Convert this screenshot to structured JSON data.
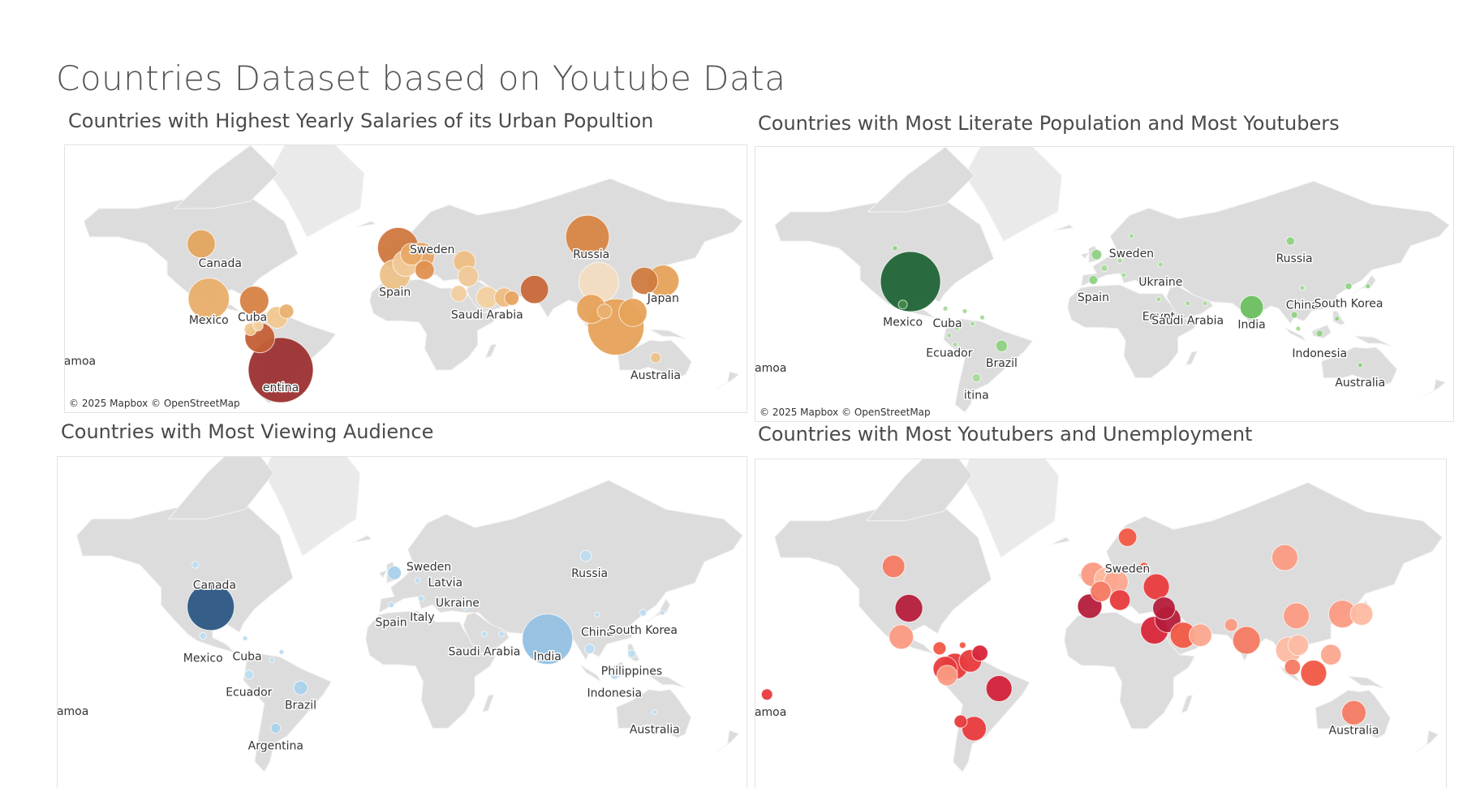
{
  "dashboard_title": "Countries Dataset based on Youtube Data",
  "attribution": "© 2025 Mapbox © OpenStreetMap",
  "maps": [
    {
      "id": "salaries",
      "title": "Countries with Highest Yearly Salaries of its Urban Popultion",
      "labels": [
        {
          "text": "Canada",
          "lon": -96,
          "lat": 56
        },
        {
          "text": "Mexico",
          "lon": -102,
          "lat": 20
        },
        {
          "text": "Cuba",
          "lon": -79,
          "lat": 22
        },
        {
          "text": "Sweden",
          "lon": 16,
          "lat": 62
        },
        {
          "text": "Russia",
          "lon": 100,
          "lat": 60
        },
        {
          "text": "Spain",
          "lon": -3.7,
          "lat": 40
        },
        {
          "text": "Saudi Arabia",
          "lon": 45,
          "lat": 24
        },
        {
          "text": "Japan",
          "lon": 138,
          "lat": 36
        },
        {
          "text": "Australia",
          "lon": 134,
          "lat": -25
        },
        {
          "text": "Samoa",
          "lon": -172,
          "lat": -13.8
        },
        {
          "text": "entina",
          "lon": -64,
          "lat": -34
        }
      ],
      "points": [
        {
          "lon": -106,
          "lat": 57,
          "v": 15000,
          "c": "#e4a45e"
        },
        {
          "lon": -102,
          "lat": 23,
          "v": 32000,
          "c": "#e8ad6a"
        },
        {
          "lon": -78,
          "lat": 21.5,
          "v": 16000,
          "c": "#d68143"
        },
        {
          "lon": -61,
          "lat": 13,
          "v": 4000,
          "c": "#e9b070"
        },
        {
          "lon": -66,
          "lat": 8,
          "v": 9000,
          "c": "#f0c78f"
        },
        {
          "lon": -76,
          "lat": 1,
          "v": 2000,
          "c": "#f3d3a3"
        },
        {
          "lon": -64,
          "lat": -34,
          "v": 80000,
          "c": "#9c3030"
        },
        {
          "lon": -80,
          "lat": -2,
          "v": 3000,
          "c": "#f0c78f"
        },
        {
          "lon": -75,
          "lat": -9,
          "v": 17000,
          "c": "#c45f35"
        },
        {
          "lon": -2,
          "lat": 55,
          "v": 32000,
          "c": "#d0773f"
        },
        {
          "lon": 5,
          "lat": 52,
          "v": 9000,
          "c": "#e8a865"
        },
        {
          "lon": 10,
          "lat": 51,
          "v": 14000,
          "c": "#e6a463"
        },
        {
          "lon": 2,
          "lat": 47,
          "v": 13000,
          "c": "#f0c896"
        },
        {
          "lon": -3.7,
          "lat": 40,
          "v": 18000,
          "c": "#ecc088"
        },
        {
          "lon": 12,
          "lat": 43,
          "v": 7000,
          "c": "#e09050"
        },
        {
          "lon": 33,
          "lat": 48,
          "v": 9000,
          "c": "#edbe82"
        },
        {
          "lon": 35,
          "lat": 39,
          "v": 8000,
          "c": "#f0c896"
        },
        {
          "lon": 30,
          "lat": 27,
          "v": 5000,
          "c": "#f2cfa0"
        },
        {
          "lon": 45,
          "lat": 24,
          "v": 9000,
          "c": "#f2d0a0"
        },
        {
          "lon": 54,
          "lat": 24,
          "v": 7000,
          "c": "#edbc80"
        },
        {
          "lon": 58,
          "lat": 23.5,
          "v": 4000,
          "c": "#e6a463"
        },
        {
          "lon": 70,
          "lat": 30,
          "v": 15000,
          "c": "#c8683a"
        },
        {
          "lon": 98,
          "lat": 60,
          "v": 36000,
          "c": "#d78545"
        },
        {
          "lon": 104,
          "lat": 35,
          "v": 30000,
          "c": "#f2dcc0"
        },
        {
          "lon": 100,
          "lat": 15,
          "v": 16000,
          "c": "#e6a25a"
        },
        {
          "lon": 107,
          "lat": 13,
          "v": 4000,
          "c": "#e9b070"
        },
        {
          "lon": 113,
          "lat": 0,
          "v": 60000,
          "c": "#e6a25a"
        },
        {
          "lon": 122,
          "lat": 12,
          "v": 15000,
          "c": "#e6a25a"
        },
        {
          "lon": 128,
          "lat": 36,
          "v": 14000,
          "c": "#d07a40"
        },
        {
          "lon": 138,
          "lat": 36,
          "v": 19000,
          "c": "#e6a25a"
        },
        {
          "lon": 134,
          "lat": -25,
          "v": 2000,
          "c": "#ecc088"
        }
      ]
    },
    {
      "id": "literate",
      "title": "Countries with Most Literate Population and Most Youtubers",
      "labels": [
        {
          "text": "Sweden",
          "lon": 16,
          "lat": 62
        },
        {
          "text": "Russia",
          "lon": 100,
          "lat": 60
        },
        {
          "text": "Ukraine",
          "lon": 31,
          "lat": 49
        },
        {
          "text": "Spain",
          "lon": -3.7,
          "lat": 40
        },
        {
          "text": "China",
          "lon": 104,
          "lat": 35
        },
        {
          "text": "South Korea",
          "lon": 128,
          "lat": 36
        },
        {
          "text": "Egypt",
          "lon": 30,
          "lat": 27
        },
        {
          "text": "Saudi Arabia",
          "lon": 45,
          "lat": 24
        },
        {
          "text": "India",
          "lon": 78,
          "lat": 21
        },
        {
          "text": "Mexico",
          "lon": -102,
          "lat": 23
        },
        {
          "text": "Cuba",
          "lon": -79,
          "lat": 22
        },
        {
          "text": "Ecuador",
          "lon": -78,
          "lat": -1.5
        },
        {
          "text": "Brazil",
          "lon": -51,
          "lat": -10
        },
        {
          "text": "Indonesia",
          "lon": 113,
          "lat": -2
        },
        {
          "text": "Australia",
          "lon": 134,
          "lat": -25
        },
        {
          "text": "Samoa",
          "lon": -172,
          "lat": -13.8
        },
        {
          "text": "itina",
          "lon": -64,
          "lat": -34
        }
      ],
      "points": [
        {
          "lon": -106,
          "lat": 57,
          "v": 3,
          "c": "#8fd183"
        },
        {
          "lon": -98,
          "lat": 39,
          "v": 400,
          "c": "#1f6435"
        },
        {
          "lon": -102,
          "lat": 23,
          "v": 9,
          "c": "#3e8a4a"
        },
        {
          "lon": -80,
          "lat": 20,
          "v": 1,
          "c": "#a6da99"
        },
        {
          "lon": -70,
          "lat": 18,
          "v": 0.6,
          "c": "#a6da99"
        },
        {
          "lon": -61,
          "lat": 13,
          "v": 0.6,
          "c": "#a6da99"
        },
        {
          "lon": -74,
          "lat": 4.5,
          "v": 3,
          "c": "#a6da99"
        },
        {
          "lon": -66,
          "lat": 8,
          "v": 0.7,
          "c": "#a6da99"
        },
        {
          "lon": -78,
          "lat": -1.5,
          "v": 1.5,
          "c": "#a6da99"
        },
        {
          "lon": -75,
          "lat": -9,
          "v": 1,
          "c": "#a6da99"
        },
        {
          "lon": -51,
          "lat": -10,
          "v": 15,
          "c": "#8fd183"
        },
        {
          "lon": -64,
          "lat": -34,
          "v": 8,
          "c": "#a6da99"
        },
        {
          "lon": 98,
          "lat": 60,
          "v": 8,
          "c": "#8fd183"
        },
        {
          "lon": -2,
          "lat": 54,
          "v": 12,
          "c": "#8fd183"
        },
        {
          "lon": 2,
          "lat": 47,
          "v": 5,
          "c": "#a6da99"
        },
        {
          "lon": 10,
          "lat": 51,
          "v": 3,
          "c": "#a6da99"
        },
        {
          "lon": 12,
          "lat": 43,
          "v": 2,
          "c": "#a6da99"
        },
        {
          "lon": -3.7,
          "lat": 40,
          "v": 9,
          "c": "#8fd183"
        },
        {
          "lon": 16,
          "lat": 62,
          "v": 0.3,
          "c": "#a6da99"
        },
        {
          "lon": 31,
          "lat": 49,
          "v": 3,
          "c": "#a6da99"
        },
        {
          "lon": 35,
          "lat": 39,
          "v": 3,
          "c": "#a6da99"
        },
        {
          "lon": 45,
          "lat": 24,
          "v": 3,
          "c": "#a6da99"
        },
        {
          "lon": 54,
          "lat": 24,
          "v": 2,
          "c": "#a6da99"
        },
        {
          "lon": 30,
          "lat": 27,
          "v": 1,
          "c": "#a6da99"
        },
        {
          "lon": 78,
          "lat": 21,
          "v": 60,
          "c": "#6bbf5f"
        },
        {
          "lon": 104,
          "lat": 35,
          "v": 0.4,
          "c": "#a6da99"
        },
        {
          "lon": 128,
          "lat": 36,
          "v": 5,
          "c": "#8fd183"
        },
        {
          "lon": 138,
          "lat": 36,
          "v": 1.5,
          "c": "#8fd183"
        },
        {
          "lon": 100,
          "lat": 15,
          "v": 5,
          "c": "#8fd183"
        },
        {
          "lon": 122,
          "lat": 12,
          "v": 2,
          "c": "#8fd183"
        },
        {
          "lon": 113,
          "lat": 0,
          "v": 5,
          "c": "#8fd183"
        },
        {
          "lon": 102,
          "lat": 4,
          "v": 1,
          "c": "#a6da99"
        },
        {
          "lon": 134,
          "lat": -25,
          "v": 0.8,
          "c": "#8fd183"
        }
      ]
    },
    {
      "id": "viewing",
      "title": "Countries with Most Viewing Audience",
      "labels": [
        {
          "text": "Canada",
          "lon": -96,
          "lat": 56
        },
        {
          "text": "Mexico",
          "lon": -102,
          "lat": 20
        },
        {
          "text": "Cuba",
          "lon": -79,
          "lat": 21
        },
        {
          "text": "Ecuador",
          "lon": -78,
          "lat": -1.5
        },
        {
          "text": "Brazil",
          "lon": -51,
          "lat": -10
        },
        {
          "text": "Argentina",
          "lon": -64,
          "lat": -34
        },
        {
          "text": "Sweden",
          "lon": 16,
          "lat": 62
        },
        {
          "text": "Latvia",
          "lon": 24.6,
          "lat": 56.8
        },
        {
          "text": "Ukraine",
          "lon": 31,
          "lat": 49
        },
        {
          "text": "Italy",
          "lon": 12.5,
          "lat": 42.5
        },
        {
          "text": "Spain",
          "lon": -3.7,
          "lat": 40
        },
        {
          "text": "Russia",
          "lon": 100,
          "lat": 60
        },
        {
          "text": "China",
          "lon": 104,
          "lat": 35
        },
        {
          "text": "South Korea",
          "lon": 128,
          "lat": 36
        },
        {
          "text": "Saudi Arabia",
          "lon": 45,
          "lat": 24
        },
        {
          "text": "India",
          "lon": 78,
          "lat": 21
        },
        {
          "text": "Philippines",
          "lon": 122,
          "lat": 12
        },
        {
          "text": "Indonesia",
          "lon": 113,
          "lat": -2
        },
        {
          "text": "Australia",
          "lon": 134,
          "lat": -25
        },
        {
          "text": "Samoa",
          "lon": -172,
          "lat": -13.8
        }
      ],
      "points": [
        {
          "lon": -106,
          "lat": 57,
          "v": 3,
          "c": "#bcdcf0"
        },
        {
          "lon": -98,
          "lat": 39,
          "v": 140,
          "c": "#2b5784"
        },
        {
          "lon": -102,
          "lat": 23,
          "v": 3,
          "c": "#bcdcf0"
        },
        {
          "lon": -80,
          "lat": 21.5,
          "v": 0.6,
          "c": "#bcdcf0"
        },
        {
          "lon": -66,
          "lat": 8,
          "v": 1,
          "c": "#bcdcf0"
        },
        {
          "lon": -61,
          "lat": 13,
          "v": 0.5,
          "c": "#bcdcf0"
        },
        {
          "lon": -78,
          "lat": -1.5,
          "v": 5,
          "c": "#bcdcf0"
        },
        {
          "lon": -51,
          "lat": -10,
          "v": 12,
          "c": "#a9d1ec"
        },
        {
          "lon": -64,
          "lat": -34,
          "v": 6,
          "c": "#a9d1ec"
        },
        {
          "lon": -2,
          "lat": 54,
          "v": 12,
          "c": "#a9d1ec"
        },
        {
          "lon": 10,
          "lat": 51,
          "v": 2,
          "c": "#bcdcf0"
        },
        {
          "lon": 12,
          "lat": 43,
          "v": 2,
          "c": "#bcdcf0"
        },
        {
          "lon": -3.7,
          "lat": 40,
          "v": 2,
          "c": "#bcdcf0"
        },
        {
          "lon": 24.6,
          "lat": 56.8,
          "v": 0.5,
          "c": "#bcdcf0"
        },
        {
          "lon": 31,
          "lat": 49,
          "v": 1,
          "c": "#bcdcf0"
        },
        {
          "lon": 35,
          "lat": 39,
          "v": 2,
          "c": "#bcdcf0"
        },
        {
          "lon": 45,
          "lat": 24,
          "v": 2,
          "c": "#bcdcf0"
        },
        {
          "lon": 54,
          "lat": 24,
          "v": 2,
          "c": "#bcdcf0"
        },
        {
          "lon": 78,
          "lat": 21,
          "v": 160,
          "c": "#92c0e1"
        },
        {
          "lon": 98,
          "lat": 60,
          "v": 8,
          "c": "#bcdcf0"
        },
        {
          "lon": 104,
          "lat": 35,
          "v": 0.6,
          "c": "#bcdcf0"
        },
        {
          "lon": 128,
          "lat": 36,
          "v": 3,
          "c": "#bcdcf0"
        },
        {
          "lon": 138,
          "lat": 36,
          "v": 1.5,
          "c": "#bcdcf0"
        },
        {
          "lon": 100,
          "lat": 15,
          "v": 6,
          "c": "#bcdcf0"
        },
        {
          "lon": 122,
          "lat": 12,
          "v": 4,
          "c": "#bcdcf0"
        },
        {
          "lon": 113,
          "lat": -2,
          "v": 4,
          "c": "#bcdcf0"
        },
        {
          "lon": 134,
          "lat": -25,
          "v": 0.6,
          "c": "#bcdcf0"
        }
      ]
    },
    {
      "id": "unemployment",
      "title": "Countries with Most Youtubers and Unemployment",
      "labels": [
        {
          "text": "Sweden",
          "lon": 16,
          "lat": 62
        },
        {
          "text": "Samoa",
          "lon": -172,
          "lat": -13.8
        },
        {
          "text": "Australia",
          "lon": 134,
          "lat": -25
        }
      ],
      "points": [
        {
          "lon": -106,
          "lat": 57,
          "v": 6,
          "c": "#f67a62"
        },
        {
          "lon": -98,
          "lat": 39,
          "v": 9,
          "c": "#b51c3a"
        },
        {
          "lon": -102,
          "lat": 23,
          "v": 7,
          "c": "#fb9a82"
        },
        {
          "lon": -82,
          "lat": 16,
          "v": 2,
          "c": "#f15945"
        },
        {
          "lon": -70,
          "lat": 18,
          "v": 0.3,
          "c": "#f15945"
        },
        {
          "lon": -61,
          "lat": 13,
          "v": 3,
          "c": "#d9253a"
        },
        {
          "lon": -66,
          "lat": 8,
          "v": 6,
          "c": "#e83b3d"
        },
        {
          "lon": -74,
          "lat": 4.5,
          "v": 8,
          "c": "#e83b3d"
        },
        {
          "lon": -79,
          "lat": 3,
          "v": 7,
          "c": "#e83b3d"
        },
        {
          "lon": -78,
          "lat": -1.5,
          "v": 5,
          "c": "#fb9a82"
        },
        {
          "lon": -51,
          "lat": -10,
          "v": 8,
          "c": "#d12138"
        },
        {
          "lon": -71,
          "lat": -30,
          "v": 2,
          "c": "#e83b3d"
        },
        {
          "lon": -64,
          "lat": -34,
          "v": 7,
          "c": "#e83b3d"
        },
        {
          "lon": 16,
          "lat": 66,
          "v": 4,
          "c": "#f15945"
        },
        {
          "lon": 24.6,
          "lat": 56.8,
          "v": 1,
          "c": "#f15945"
        },
        {
          "lon": 98,
          "lat": 60,
          "v": 8,
          "c": "#fb9a82"
        },
        {
          "lon": -2,
          "lat": 54,
          "v": 7,
          "c": "#fb9a82"
        },
        {
          "lon": 5,
          "lat": 52,
          "v": 7,
          "c": "#fcbaa1"
        },
        {
          "lon": 10,
          "lat": 51,
          "v": 7,
          "c": "#fca78f"
        },
        {
          "lon": 2,
          "lat": 47,
          "v": 5,
          "c": "#f67a62"
        },
        {
          "lon": 12,
          "lat": 43,
          "v": 5,
          "c": "#e83b3d"
        },
        {
          "lon": -3.7,
          "lat": 40,
          "v": 7,
          "c": "#b51c3a"
        },
        {
          "lon": 31,
          "lat": 49,
          "v": 8,
          "c": "#e83b3d"
        },
        {
          "lon": 35,
          "lat": 39,
          "v": 6,
          "c": "#b51c3a"
        },
        {
          "lon": 37,
          "lat": 33,
          "v": 8,
          "c": "#b51c3a"
        },
        {
          "lon": 30,
          "lat": 27,
          "v": 9,
          "c": "#d9253a"
        },
        {
          "lon": 45,
          "lat": 24,
          "v": 8,
          "c": "#f15945"
        },
        {
          "lon": 54,
          "lat": 24,
          "v": 6,
          "c": "#fca78f"
        },
        {
          "lon": 70,
          "lat": 30,
          "v": 2,
          "c": "#fb9a82"
        },
        {
          "lon": 78,
          "lat": 21,
          "v": 9,
          "c": "#f67a62"
        },
        {
          "lon": 104,
          "lat": 35,
          "v": 8,
          "c": "#fb9a82"
        },
        {
          "lon": 128,
          "lat": 36,
          "v": 9,
          "c": "#fb9a82"
        },
        {
          "lon": 138,
          "lat": 36,
          "v": 6,
          "c": "#fcbaa1"
        },
        {
          "lon": 100,
          "lat": 15,
          "v": 8,
          "c": "#fcbaa1"
        },
        {
          "lon": 105,
          "lat": 18,
          "v": 5,
          "c": "#fcbaa1"
        },
        {
          "lon": 122,
          "lat": 12,
          "v": 5,
          "c": "#fca78f"
        },
        {
          "lon": 102,
          "lat": 4,
          "v": 3,
          "c": "#f67a62"
        },
        {
          "lon": 113,
          "lat": 0,
          "v": 8,
          "c": "#f15945"
        },
        {
          "lon": 134,
          "lat": -25,
          "v": 7,
          "c": "#f67a62"
        },
        {
          "lon": -172,
          "lat": -13.8,
          "v": 1.5,
          "c": "#e83b3d"
        }
      ]
    }
  ]
}
